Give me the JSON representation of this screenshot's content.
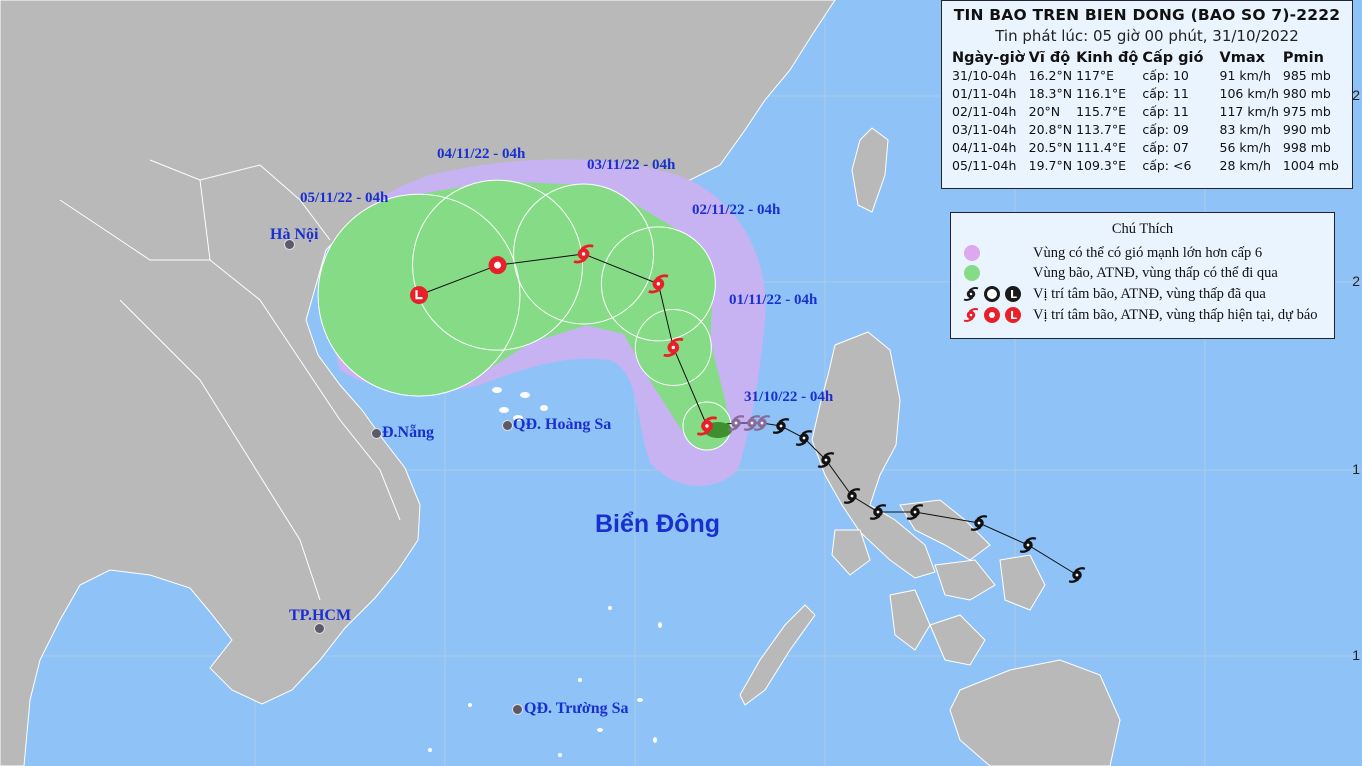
{
  "bulletin": {
    "title": "TIN BAO TREN BIEN DONG (BAO SO 7)-2222",
    "issued": "Tin phát lúc: 05 giờ 00 phút, 31/10/2022",
    "headers": [
      "Ngày-giờ",
      "Vĩ độ",
      "Kinh độ",
      "Cấp gió",
      "Vmax",
      "Pmin"
    ],
    "rows": [
      {
        "time": "31/10-04h",
        "lat": "16.2°N",
        "lon": "117°E",
        "wind": "cấp: 10",
        "vmax": "91 km/h",
        "pmin": "985 mb",
        "lat_val": 16.2,
        "lon_val": 117,
        "marker": "storm-icon"
      },
      {
        "time": "01/11-04h",
        "lat": "18.3°N",
        "lon": "116.1°E",
        "wind": "cấp: 11",
        "vmax": "106 km/h",
        "pmin": "980 mb",
        "lat_val": 18.3,
        "lon_val": 116.1,
        "marker": "storm-icon"
      },
      {
        "time": "02/11-04h",
        "lat": "20°N",
        "lon": "115.7°E",
        "wind": "cấp: 11",
        "vmax": "117 km/h",
        "pmin": "975 mb",
        "lat_val": 20,
        "lon_val": 115.7,
        "marker": "storm-icon"
      },
      {
        "time": "03/11-04h",
        "lat": "20.8°N",
        "lon": "113.7°E",
        "wind": "cấp: 09",
        "vmax": "83 km/h",
        "pmin": "990 mb",
        "lat_val": 20.8,
        "lon_val": 113.7,
        "marker": "storm-icon"
      },
      {
        "time": "04/11-04h",
        "lat": "20.5°N",
        "lon": "111.4°E",
        "wind": "cấp: 07",
        "vmax": "56 km/h",
        "pmin": "998 mb",
        "lat_val": 20.5,
        "lon_val": 111.4,
        "marker": "depression-icon"
      },
      {
        "time": "05/11-04h",
        "lat": "19.7°N",
        "lon": "109.3°E",
        "wind": "cấp: <6",
        "vmax": "28 km/h",
        "pmin": "1004 mb",
        "lat_val": 19.7,
        "lon_val": 109.3,
        "marker": "low-pressure-icon"
      }
    ]
  },
  "legend": {
    "title": "Chú Thích",
    "items": [
      {
        "label": "Vùng có thể có gió mạnh lớn hơn cấp 6",
        "icon": "purple-dot-icon",
        "color": "#dca8ee"
      },
      {
        "label": "Vùng bão, ATNĐ, vùng thấp có thể đi qua",
        "icon": "green-dot-icon",
        "color": "#86dc86"
      },
      {
        "label": "Vị trí tâm bão, ATNĐ, vùng thấp đã qua",
        "icon": "past-position-icons",
        "color": "#1a1a1a"
      },
      {
        "label": "Vị trí tâm bão, ATNĐ, vùng thấp hiện tại, dự báo",
        "icon": "forecast-position-icons",
        "color": "#e8202a"
      }
    ]
  },
  "track_labels": [
    "31/10/22 - 04h",
    "01/11/22 - 04h",
    "02/11/22 - 04h",
    "03/11/22 - 04h",
    "04/11/22 - 04h",
    "05/11/22 - 04h"
  ],
  "places": {
    "hanoi": "Hà Nội",
    "danang": "Đ.Nẵng",
    "hoangsa": "QĐ. Hoàng Sa",
    "hcm": "TP.HCM",
    "truongsa": "QĐ. Trường Sa",
    "sea": "Biển Đông"
  },
  "lat_ticks": [
    "2",
    "2",
    "1",
    "1"
  ],
  "colors": {
    "sea": "#8fc3f7",
    "land": "#b9b9b9",
    "wind_zone_sea": "#c7b2f2",
    "wind_zone_land": "#d7a9d6",
    "track_zone_sea": "#86dc86",
    "track_zone_land": "#a8d06a",
    "forecast_marker": "#e8202a",
    "past_marker": "#1a1a1a",
    "track_label": "#1a2fd0"
  }
}
